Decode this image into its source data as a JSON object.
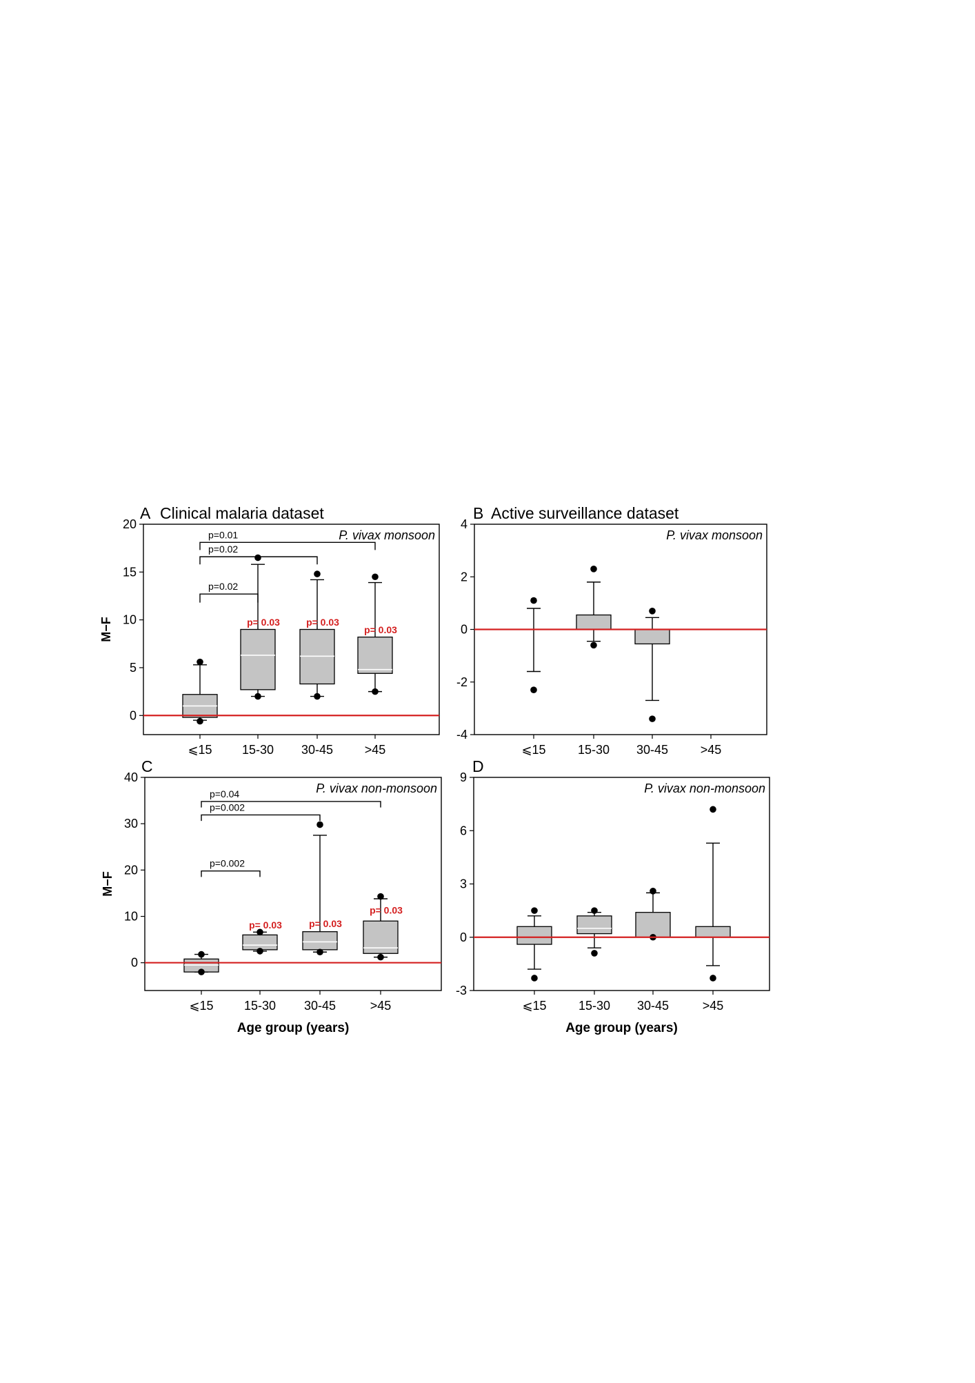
{
  "figure": {
    "xlabel_shared": "Age group (years)"
  },
  "chart_data": [
    {
      "id": "A",
      "type": "boxplot",
      "panel_letter": "A",
      "title": "Clinical malaria dataset",
      "annotation": "P. vivax monsoon",
      "ylabel": "M−F",
      "xlabel": "",
      "ylim": [
        -2,
        20
      ],
      "yticks": [
        0,
        5,
        10,
        15,
        20
      ],
      "categories": [
        "⩽15",
        "15-30",
        "30-45",
        ">45"
      ],
      "boxes": [
        {
          "whisker_low": -0.5,
          "q1": -0.2,
          "median": 1.0,
          "q3": 2.2,
          "whisker_high": 5.3,
          "outliers": [
            -0.6,
            5.6
          ]
        },
        {
          "whisker_low": 2.0,
          "q1": 2.7,
          "median": 6.3,
          "q3": 9.0,
          "whisker_high": 15.8,
          "outliers": [
            2.0,
            16.5
          ]
        },
        {
          "whisker_low": 2.0,
          "q1": 3.3,
          "median": 6.2,
          "q3": 9.0,
          "whisker_high": 14.2,
          "outliers": [
            2.0,
            14.8
          ]
        },
        {
          "whisker_low": 2.5,
          "q1": 4.4,
          "median": 4.8,
          "q3": 8.2,
          "whisker_high": 13.9,
          "outliers": [
            2.5,
            14.5
          ]
        }
      ],
      "reference_line": {
        "y": 0,
        "color": "#d42020"
      },
      "brackets": [
        {
          "from": 0,
          "to": 1,
          "y": 12.7,
          "drop": 0.9,
          "label": "p=0.02"
        },
        {
          "from": 0,
          "to": 2,
          "y": 16.6,
          "drop": 0.8,
          "label": "p=0.02"
        },
        {
          "from": 0,
          "to": 3,
          "y": 18.1,
          "drop": 0.8,
          "label": "p=0.01"
        }
      ],
      "box_labels": [
        {
          "cat": 1,
          "y": 9.4,
          "label": "p= 0.03"
        },
        {
          "cat": 2,
          "y": 9.4,
          "label": "p= 0.03"
        },
        {
          "cat": 3,
          "y": 8.6,
          "label": "p= 0.03"
        }
      ]
    },
    {
      "id": "B",
      "type": "boxplot",
      "panel_letter": "B",
      "title": "Active surveillance dataset",
      "annotation": "P. vivax monsoon",
      "ylabel": "",
      "xlabel": "",
      "ylim": [
        -4,
        4
      ],
      "yticks": [
        -4,
        -2,
        0,
        2,
        4
      ],
      "categories": [
        "⩽15",
        "15-30",
        "30-45",
        ">45"
      ],
      "boxes": [
        {
          "whisker_low": -1.6,
          "q1": null,
          "median": null,
          "q3": null,
          "whisker_high": 0.8,
          "outliers": [
            -2.3,
            1.1
          ]
        },
        {
          "whisker_low": -0.45,
          "q1": 0.0,
          "median": 0.0,
          "q3": 0.55,
          "whisker_high": 1.8,
          "outliers": [
            -0.6,
            2.3
          ]
        },
        {
          "whisker_low": -2.7,
          "q1": -0.55,
          "median": 0.0,
          "q3": 0.0,
          "whisker_high": 0.45,
          "outliers": [
            -3.4,
            0.7
          ]
        },
        null
      ],
      "reference_line": {
        "y": 0,
        "color": "#d42020"
      },
      "brackets": [],
      "box_labels": []
    },
    {
      "id": "C",
      "type": "boxplot",
      "panel_letter": "C",
      "title": "",
      "annotation": "P. vivax non-monsoon",
      "ylabel": "M−F",
      "xlabel": "Age group (years)",
      "ylim": [
        -6,
        40
      ],
      "yticks": [
        0,
        10,
        20,
        30,
        40
      ],
      "categories": [
        "⩽15",
        "15-30",
        "30-45",
        ">45"
      ],
      "boxes": [
        {
          "whisker_low": -2.0,
          "q1": -2.0,
          "median": -0.5,
          "q3": 0.8,
          "whisker_high": 1.8,
          "outliers": [
            -2.0,
            1.8
          ]
        },
        {
          "whisker_low": 2.5,
          "q1": 2.8,
          "median": 3.8,
          "q3": 6.0,
          "whisker_high": 6.6,
          "outliers": [
            2.5,
            6.6
          ]
        },
        {
          "whisker_low": 2.3,
          "q1": 2.8,
          "median": 4.5,
          "q3": 6.7,
          "whisker_high": 27.5,
          "outliers": [
            2.3,
            29.8
          ]
        },
        {
          "whisker_low": 1.2,
          "q1": 2.0,
          "median": 3.2,
          "q3": 9.0,
          "whisker_high": 13.8,
          "outliers": [
            1.2,
            14.3
          ]
        }
      ],
      "reference_line": {
        "y": 0,
        "color": "#d42020"
      },
      "brackets": [
        {
          "from": 0,
          "to": 1,
          "y": 19.8,
          "drop": 1.3,
          "label": "p=0.002"
        },
        {
          "from": 0,
          "to": 2,
          "y": 31.9,
          "drop": 1.3,
          "label": "p=0.002"
        },
        {
          "from": 0,
          "to": 3,
          "y": 34.8,
          "drop": 1.3,
          "label": "p=0.04"
        }
      ],
      "box_labels": [
        {
          "cat": 1,
          "y": 7.4,
          "label": "p= 0.03"
        },
        {
          "cat": 2,
          "y": 7.7,
          "label": "p= 0.03"
        },
        {
          "cat": 3,
          "y": 10.6,
          "label": "p= 0.03"
        }
      ]
    },
    {
      "id": "D",
      "type": "boxplot",
      "panel_letter": "D",
      "title": "",
      "annotation": "P. vivax non-monsoon",
      "ylabel": "",
      "xlabel": "Age group (years)",
      "ylim": [
        -3,
        9
      ],
      "yticks": [
        -3,
        0,
        3,
        6,
        9
      ],
      "categories": [
        "⩽15",
        "15-30",
        "30-45",
        ">45"
      ],
      "boxes": [
        {
          "whisker_low": -1.8,
          "q1": -0.4,
          "median": 0.0,
          "q3": 0.6,
          "whisker_high": 1.2,
          "outliers": [
            -2.3,
            1.5
          ]
        },
        {
          "whisker_low": -0.6,
          "q1": 0.2,
          "median": 0.5,
          "q3": 1.2,
          "whisker_high": 1.4,
          "outliers": [
            -0.9,
            1.5
          ]
        },
        {
          "whisker_low": 0.0,
          "q1": 0.0,
          "median": 0.0,
          "q3": 1.4,
          "whisker_high": 2.5,
          "outliers": [
            0.0,
            2.6
          ]
        },
        {
          "whisker_low": -1.6,
          "q1": 0.0,
          "median": 0.0,
          "q3": 0.6,
          "whisker_high": 5.3,
          "outliers": [
            -2.3,
            7.2
          ]
        }
      ],
      "reference_line": {
        "y": 0,
        "color": "#d42020"
      },
      "brackets": [],
      "box_labels": []
    }
  ],
  "colors": {
    "box_fill": "#c4c4c4",
    "stroke": "#000000",
    "reference_line": "#d42020",
    "significance_text": "#d42020"
  }
}
